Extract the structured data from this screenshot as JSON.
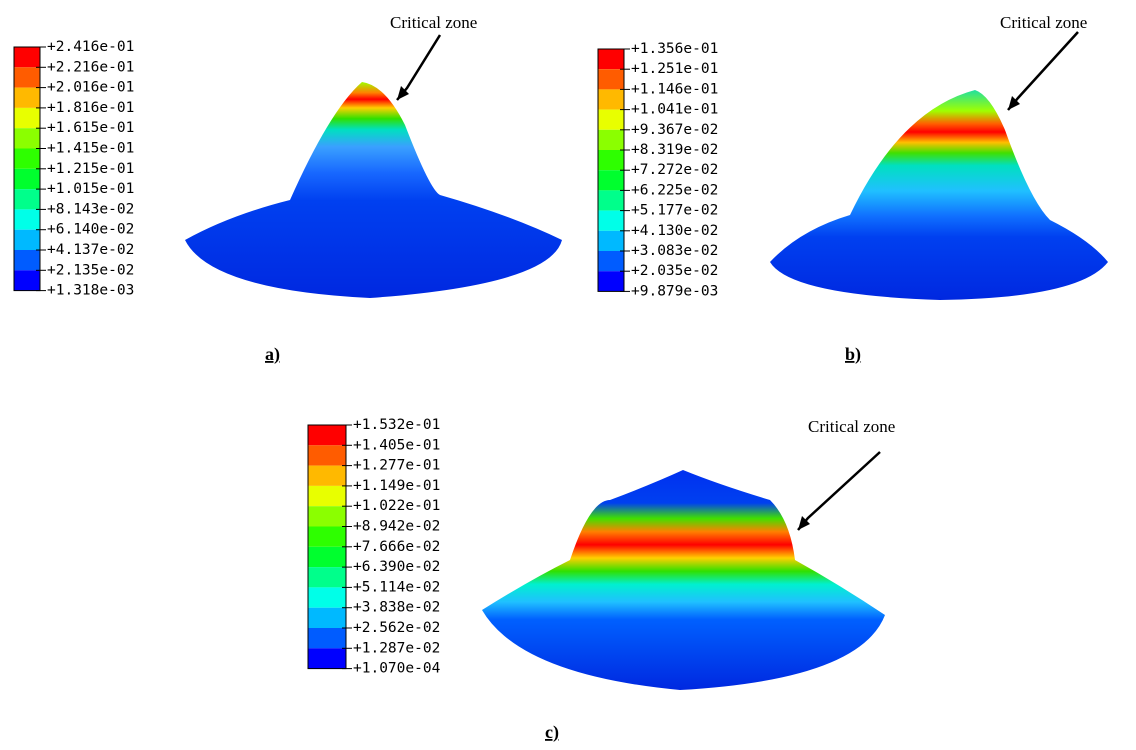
{
  "panels": [
    {
      "label": "a)",
      "callout": "Critical zone",
      "legend": [
        "+2.416e-01",
        "+2.216e-01",
        "+2.016e-01",
        "+1.816e-01",
        "+1.615e-01",
        "+1.415e-01",
        "+1.215e-01",
        "+1.015e-01",
        "+8.143e-02",
        "+6.140e-02",
        "+4.137e-02",
        "+2.135e-02",
        "+1.318e-03"
      ]
    },
    {
      "label": "b)",
      "callout": "Critical zone",
      "legend": [
        "+1.356e-01",
        "+1.251e-01",
        "+1.146e-01",
        "+1.041e-01",
        "+9.367e-02",
        "+8.319e-02",
        "+7.272e-02",
        "+6.225e-02",
        "+5.177e-02",
        "+4.130e-02",
        "+3.083e-02",
        "+2.035e-02",
        "+9.879e-03"
      ]
    },
    {
      "label": "c)",
      "callout": "Critical zone",
      "legend": [
        "+1.532e-01",
        "+1.405e-01",
        "+1.277e-01",
        "+1.149e-01",
        "+1.022e-01",
        "+8.942e-02",
        "+7.666e-02",
        "+6.390e-02",
        "+5.114e-02",
        "+3.838e-02",
        "+2.562e-02",
        "+1.287e-02",
        "+1.070e-04"
      ]
    }
  ]
}
